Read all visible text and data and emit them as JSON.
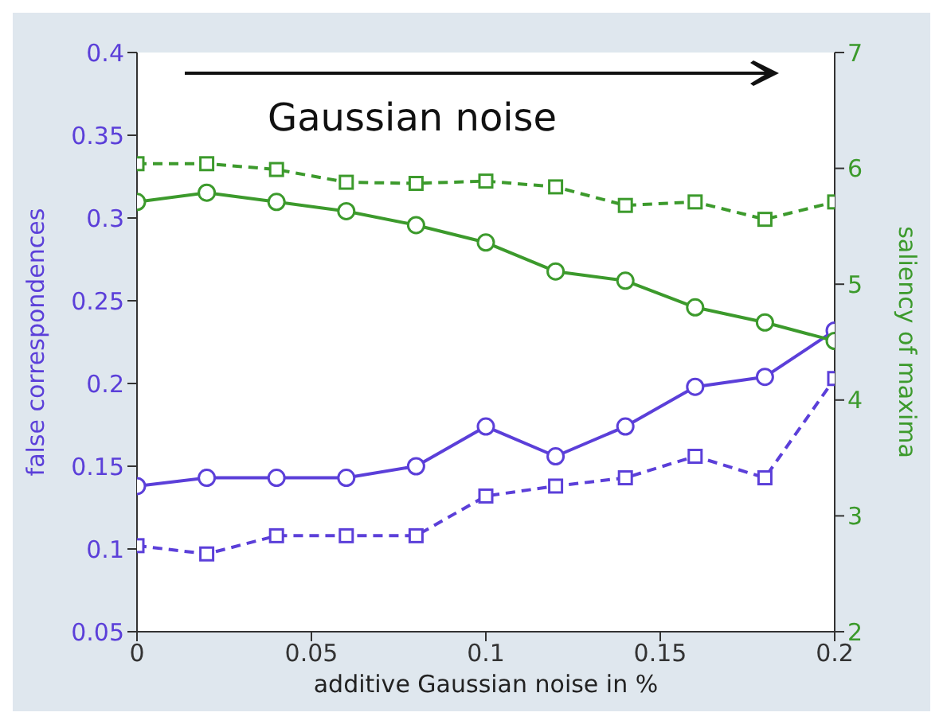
{
  "chart_data": {
    "type": "line",
    "xlabel": "additive Gaussian noise in %",
    "ylabel": "false correspondences",
    "y2label": "saliency of maxima",
    "x": [
      0,
      0.02,
      0.04,
      0.06,
      0.08,
      0.1,
      0.12,
      0.14,
      0.16,
      0.18,
      0.2
    ],
    "series": [
      {
        "color": "#5b3fd9",
        "values": [
          0.138,
          0.143,
          0.143,
          0.143,
          0.15,
          0.174,
          0.156,
          0.174,
          0.198,
          0.204,
          0.232
        ],
        "marker": "circle",
        "line_style": "solid"
      },
      {
        "color": "#5b3fd9",
        "values": [
          0.102,
          0.097,
          0.108,
          0.108,
          0.108,
          0.132,
          0.138,
          0.143,
          0.156,
          0.143,
          0.203
        ],
        "marker": "square",
        "line_style": "dashed"
      },
      {
        "color": "#3c9a2c",
        "axis": "y2",
        "values": [
          5.71,
          5.79,
          5.71,
          5.63,
          5.51,
          5.36,
          5.11,
          5.03,
          4.8,
          4.67,
          4.51
        ],
        "marker": "circle",
        "line_style": "solid"
      },
      {
        "color": "#3c9a2c",
        "axis": "y2",
        "values": [
          6.04,
          6.04,
          5.99,
          5.88,
          5.87,
          5.89,
          5.84,
          5.68,
          5.71,
          5.56,
          5.71
        ],
        "marker": "square",
        "line_style": "dashed"
      }
    ],
    "xlim": [
      0,
      0.2
    ],
    "xticks": [
      0,
      0.05,
      0.1,
      0.15,
      0.2
    ],
    "ylim": [
      0.05,
      0.4
    ],
    "yticks": [
      0.05,
      0.1,
      0.15,
      0.2,
      0.25,
      0.3,
      0.35,
      0.4
    ],
    "y2lim": [
      2,
      7
    ],
    "y2ticks": [
      2,
      3,
      4,
      5,
      6,
      7
    ],
    "annotations": [
      "Gaussian noise"
    ],
    "grid": false,
    "legend": false
  }
}
